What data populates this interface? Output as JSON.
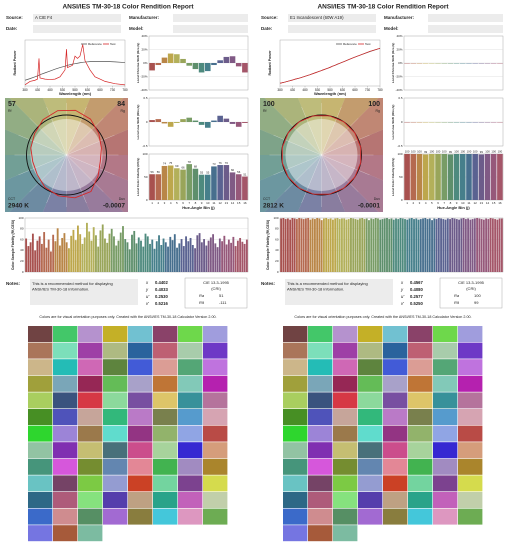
{
  "reports": [
    {
      "title": "ANSI/IES TM-30-18 Color Rendition Report",
      "fields": {
        "source_label": "Source:",
        "source": "A CIE F4",
        "manufacturer_label": "Manufacturer:",
        "date_label": "Date:",
        "model_label": "Model:"
      },
      "bin_colors": [
        "#a8514f",
        "#b56a50",
        "#b98648",
        "#bda74c",
        "#b3b05a",
        "#99a55a",
        "#789c66",
        "#5e8f6c",
        "#4e8a7e",
        "#467f8b",
        "#476f8e",
        "#5a6291",
        "#6c5c8a",
        "#805a85",
        "#96587a",
        "#a45669"
      ],
      "spectrum": {
        "type": "line",
        "xlabel": "Wavelength (nm)",
        "ylabel": "Radiant Power",
        "x": [
          380,
          400,
          420,
          430,
          436,
          440,
          460,
          480,
          500,
          520,
          540,
          546,
          550,
          570,
          580,
          590,
          600,
          611,
          620,
          640,
          660,
          680,
          700,
          740,
          780
        ],
        "xlim": [
          380,
          780
        ],
        "xticks": [
          380,
          430,
          480,
          530,
          580,
          630,
          680,
          730,
          780
        ],
        "ylim": [
          0,
          2
        ],
        "series": [
          {
            "name": "Reference",
            "color": "#555555",
            "values": [
              0.25,
              0.32,
              0.4,
              0.44,
              0.47,
              0.49,
              0.57,
              0.65,
              0.73,
              0.8,
              0.86,
              0.88,
              0.9,
              0.95,
              0.97,
              0.99,
              1.01,
              1.03,
              1.04,
              1.06,
              1.07,
              1.07,
              1.07,
              1.05,
              1.02
            ]
          },
          {
            "name": "Test",
            "color": "#d62728",
            "values": [
              0.05,
              0.2,
              0.25,
              0.3,
              1.2,
              0.35,
              0.3,
              0.28,
              0.3,
              0.4,
              0.7,
              1.6,
              0.8,
              0.9,
              1.3,
              1.2,
              1.3,
              1.8,
              1.1,
              0.7,
              0.4,
              0.3,
              0.2,
              0.1,
              0.05
            ]
          }
        ]
      },
      "chroma": {
        "type": "bar",
        "ylabel": "Local Chroma Shift (Rcs,hj)",
        "ylim": [
          -40,
          40
        ],
        "yticks": [
          {
            "value": -40,
            "label": "-40%"
          },
          {
            "value": -20,
            "label": "-20%"
          },
          {
            "value": 0,
            "label": "0%"
          },
          {
            "value": 20,
            "label": "20%"
          },
          {
            "value": 40,
            "label": "40%"
          }
        ],
        "values": [
          -11,
          -3,
          8,
          14,
          13,
          6,
          -4,
          -9,
          -14,
          -12,
          -3,
          4,
          9,
          10,
          -5,
          -14
        ]
      },
      "hue": {
        "type": "bar",
        "ylabel": "Local Hue Shift (Rhs,hj)",
        "ylim": [
          -0.5,
          0.5
        ],
        "yticks": [
          -0.5,
          0,
          0.5
        ],
        "values": [
          0.04,
          0.06,
          -0.03,
          -0.1,
          -0.02,
          0.06,
          0.09,
          0.03,
          -0.06,
          -0.12,
          0.03,
          0.13,
          0.07,
          -0.04,
          -0.1,
          -0.02
        ]
      },
      "fidelity": {
        "type": "bar",
        "ylabel": "Local Color Fidelity (Rf,hj)",
        "xlabel": "Hue-Angle Bin (j)",
        "ylim": [
          0,
          100
        ],
        "yticks": [
          0,
          50,
          100
        ],
        "categories": [
          "1",
          "2",
          "3",
          "4",
          "5",
          "6",
          "7",
          "8",
          "9",
          "10",
          "11",
          "12",
          "13",
          "14",
          "15",
          "16"
        ],
        "values": [
          56,
          56,
          74,
          75,
          69,
          66,
          78,
          68,
          55,
          55,
          73,
          76,
          76,
          60,
          56,
          51
        ]
      },
      "vector": {
        "rf": 57,
        "rf_label": "Rf",
        "rg": 84,
        "rg_label": "Rg",
        "cct_label": "CCT",
        "cct": "2940 K",
        "duv_label": "Duv",
        "duv": "-0.0007"
      },
      "samples": {
        "type": "bar",
        "ylabel": "Color Sample Fidelity (Rf,CESi)",
        "ylim": [
          0,
          100
        ],
        "yticks": [
          0,
          20,
          40,
          60,
          80,
          100
        ],
        "values": [
          62,
          48,
          55,
          71,
          40,
          58,
          66,
          52,
          74,
          45,
          60,
          38,
          69,
          57,
          81,
          49,
          63,
          72,
          55,
          44,
          67,
          78,
          59,
          86,
          70,
          52,
          64,
          91,
          75,
          58,
          83,
          68,
          47,
          77,
          88,
          62,
          54,
          71,
          80,
          66,
          49,
          58,
          73,
          85,
          61,
          55,
          42,
          69,
          76,
          53,
          64,
          58,
          47,
          71,
          66,
          52,
          60,
          43,
          57,
          68,
          50,
          62,
          55,
          47,
          65,
          59,
          70,
          45,
          53,
          61,
          48,
          66,
          57,
          63,
          50,
          44,
          68,
          72,
          55,
          61,
          49,
          58,
          64,
          70,
          53,
          46,
          62,
          57,
          67,
          51,
          60,
          54,
          65,
          48,
          58,
          63,
          56,
          52,
          60
        ]
      },
      "notes": {
        "label": "Notes:",
        "lines": [
          "This is a recommended method for displaying",
          "ANSI/IES TM-30-18 information."
        ]
      },
      "chromaticity": {
        "rows": [
          {
            "label": "x",
            "value": "0.4402"
          },
          {
            "label": "y",
            "value": "0.4033"
          },
          {
            "label": "u'",
            "value": "0.2530"
          },
          {
            "label": "v'",
            "value": "0.5216"
          }
        ]
      },
      "cri": {
        "title": "CIE 13.3-1995",
        "sub": "(CRI)",
        "ra_label": "Ra",
        "ra": 51,
        "r9_label": "R9",
        "r9": -111
      },
      "footer": "Colors are for visual orientation purposes only. Created with the ANSI/IES TM-30-18 Calculator Version 2.00."
    },
    {
      "title": "ANSI/IES TM-30-18 Color Rendition Report",
      "fields": {
        "source_label": "Source:",
        "source": "E1 Incandescent (60W A19)",
        "manufacturer_label": "Manufacturer:",
        "date_label": "Date:",
        "model_label": "Model:"
      },
      "bin_colors": [
        "#a8514f",
        "#b56a50",
        "#b98648",
        "#bda74c",
        "#b3b05a",
        "#99a55a",
        "#789c66",
        "#5e8f6c",
        "#4e8a7e",
        "#467f8b",
        "#476f8e",
        "#5a6291",
        "#6c5c8a",
        "#805a85",
        "#96587a",
        "#a45669"
      ],
      "spectrum": {
        "type": "line",
        "xlabel": "Wavelength (nm)",
        "ylabel": "Radiant Power",
        "x": [
          380,
          400,
          420,
          430,
          436,
          440,
          460,
          480,
          500,
          520,
          540,
          546,
          550,
          570,
          580,
          590,
          600,
          611,
          620,
          640,
          660,
          680,
          700,
          740,
          780
        ],
        "xlim": [
          380,
          780
        ],
        "xticks": [
          380,
          430,
          480,
          530,
          580,
          630,
          680,
          730,
          780
        ],
        "ylim": [
          0,
          2
        ],
        "series": [
          {
            "name": "Reference",
            "color": "#555555",
            "values": [
              0.12,
              0.17,
              0.23,
              0.26,
              0.28,
              0.29,
              0.35,
              0.42,
              0.49,
              0.57,
              0.65,
              0.67,
              0.69,
              0.77,
              0.81,
              0.86,
              0.9,
              0.95,
              0.99,
              1.08,
              1.17,
              1.26,
              1.34,
              1.5,
              1.64
            ]
          },
          {
            "name": "Test",
            "color": "#d62728",
            "values": [
              0.12,
              0.17,
              0.23,
              0.26,
              0.28,
              0.3,
              0.35,
              0.42,
              0.49,
              0.57,
              0.65,
              0.67,
              0.69,
              0.77,
              0.81,
              0.86,
              0.9,
              0.96,
              0.99,
              1.08,
              1.17,
              1.26,
              1.34,
              1.51,
              1.64
            ]
          }
        ]
      },
      "chroma": {
        "type": "bar",
        "ylabel": "Local Chroma Shift (Rcs,hj)",
        "ylim": [
          -40,
          40
        ],
        "yticks": [
          {
            "value": -40,
            "label": "-40%"
          },
          {
            "value": -20,
            "label": "-20%"
          },
          {
            "value": 0,
            "label": "0%"
          },
          {
            "value": 20,
            "label": "20%"
          },
          {
            "value": 40,
            "label": "40%"
          }
        ],
        "values": [
          0,
          0,
          0,
          0,
          0,
          0,
          0,
          0,
          0,
          0,
          0,
          0,
          0,
          0,
          0,
          0
        ]
      },
      "hue": {
        "type": "bar",
        "ylabel": "Local Hue Shift (Rhs,hj)",
        "ylim": [
          -0.5,
          0.5
        ],
        "yticks": [
          -0.5,
          0,
          0.5
        ],
        "values": [
          0,
          0,
          0,
          0,
          0,
          0,
          0,
          0,
          0,
          0,
          0,
          0,
          0,
          0,
          0,
          0
        ]
      },
      "fidelity": {
        "type": "bar",
        "ylabel": "Local Color Fidelity (Rf,hj)",
        "xlabel": "Hue-Angle Bin (j)",
        "ylim": [
          0,
          100
        ],
        "yticks": [
          0,
          50,
          100
        ],
        "categories": [
          "1",
          "2",
          "3",
          "4",
          "5",
          "6",
          "7",
          "8",
          "9",
          "10",
          "11",
          "12",
          "13",
          "14",
          "15",
          "16"
        ],
        "values": [
          100,
          100,
          100,
          99,
          100,
          100,
          100,
          99,
          100,
          100,
          100,
          100,
          99,
          100,
          100,
          100
        ]
      },
      "vector": {
        "rf": 100,
        "rf_label": "Rf",
        "rg": 100,
        "rg_label": "Rg",
        "cct_label": "CCT",
        "cct": "2812 K",
        "duv_label": "Duv",
        "duv": "-0.0001"
      },
      "samples": {
        "type": "bar",
        "ylabel": "Color Sample Fidelity (Rf,CESi)",
        "ylim": [
          0,
          100
        ],
        "yticks": [
          0,
          20,
          40,
          60,
          80,
          100
        ],
        "values": [
          99,
          100,
          98,
          99,
          97,
          100,
          99,
          98,
          100,
          99,
          98,
          99,
          100,
          97,
          99,
          98,
          100,
          99,
          96,
          99,
          100,
          98,
          99,
          97,
          99,
          100,
          98,
          99,
          99,
          97,
          98,
          100,
          99,
          98,
          97,
          99,
          100,
          98,
          99,
          96,
          99,
          98,
          100,
          99,
          97,
          98,
          99,
          100,
          98,
          99,
          97,
          99,
          98,
          100,
          99,
          98,
          97,
          99,
          100,
          98,
          99,
          97,
          98,
          99,
          100,
          98,
          99,
          96,
          99,
          98,
          100,
          99,
          98,
          97,
          99,
          98,
          100,
          99,
          98,
          97,
          99,
          100,
          98,
          99,
          97,
          98,
          99,
          100,
          99,
          98,
          97,
          99,
          98,
          100,
          99,
          98,
          97,
          99,
          99
        ]
      },
      "notes": {
        "label": "Notes:",
        "lines": [
          "This is a recommended method for displaying",
          "ANSI/IES TM-30-18 information."
        ]
      },
      "chromaticity": {
        "rows": [
          {
            "label": "x",
            "value": "0.4567"
          },
          {
            "label": "y",
            "value": "0.4080"
          },
          {
            "label": "u'",
            "value": "0.2577"
          },
          {
            "label": "v'",
            "value": "0.5250"
          }
        ]
      },
      "cri": {
        "title": "CIE 13.3-1995",
        "sub": "(CRI)",
        "ra_label": "Ra",
        "ra": 100,
        "r9_label": "R9",
        "r9": 99
      },
      "footer": "Colors are for visual orientation purposes only. Created with the ANSI/IES TM-30-18 Calculator Version 2.00."
    }
  ]
}
